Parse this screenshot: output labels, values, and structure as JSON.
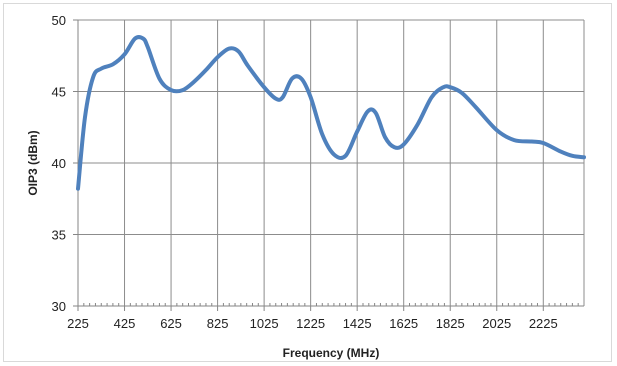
{
  "chart_data": {
    "type": "line",
    "title": "",
    "xlabel": "Frequency (MHz)",
    "ylabel": "OIP3 (dBm)",
    "xlim": [
      225,
      2400
    ],
    "ylim": [
      30,
      50
    ],
    "x_ticks": [
      225,
      425,
      625,
      825,
      1025,
      1225,
      1425,
      1625,
      1825,
      2025,
      2225
    ],
    "x_tick_labels": [
      "225",
      "425",
      "625",
      "825",
      "1025",
      "1225",
      "1425",
      "1625",
      "1825",
      "2025",
      "2225"
    ],
    "y_ticks": [
      30,
      35,
      40,
      45,
      50
    ],
    "y_tick_labels": [
      "30",
      "35",
      "40",
      "45",
      "50"
    ],
    "grid": true,
    "legend": "none",
    "series": [
      {
        "color": "#4f81bd",
        "x": [
          225,
          255,
          290,
          325,
          375,
          425,
          470,
          505,
          525,
          575,
          625,
          675,
          725,
          775,
          825,
          875,
          915,
          955,
          1025,
          1075,
          1105,
          1145,
          1185,
          1225,
          1275,
          1325,
          1375,
          1425,
          1470,
          1505,
          1545,
          1585,
          1625,
          1685,
          1745,
          1795,
          1825,
          1875,
          1935,
          2025,
          2100,
          2175,
          2225,
          2300,
          2350,
          2400
        ],
        "y": [
          38.2,
          43.2,
          46.0,
          46.6,
          46.9,
          47.6,
          48.7,
          48.7,
          48.1,
          45.9,
          45.1,
          45.1,
          45.7,
          46.5,
          47.4,
          48.0,
          47.8,
          46.8,
          45.3,
          44.5,
          44.6,
          45.9,
          45.9,
          44.6,
          42.0,
          40.6,
          40.5,
          42.2,
          43.6,
          43.5,
          41.8,
          41.1,
          41.3,
          42.7,
          44.6,
          45.3,
          45.3,
          44.9,
          43.9,
          42.3,
          41.6,
          41.5,
          41.4,
          40.8,
          40.5,
          40.4
        ]
      }
    ]
  }
}
